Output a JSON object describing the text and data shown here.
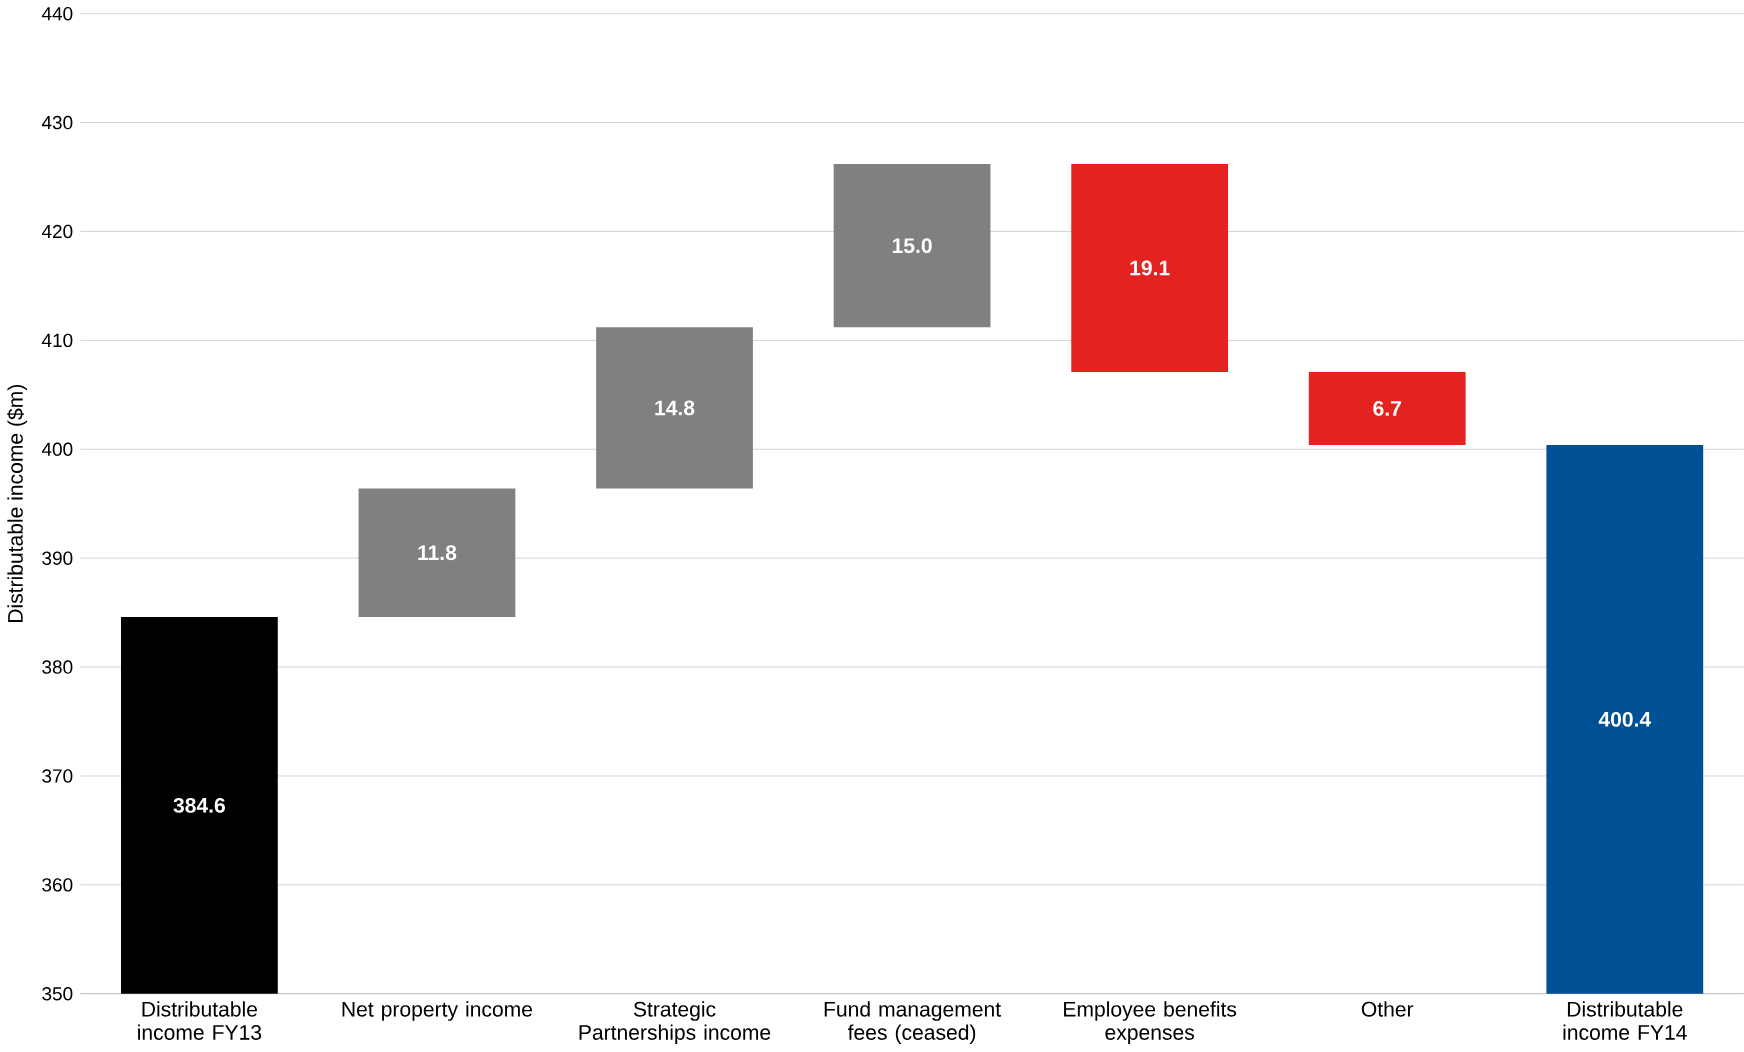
{
  "chart_data": {
    "type": "bar",
    "ylabel": "Distributable income ($m)",
    "categories": [
      "Distributable income FY13",
      "Net property income",
      "Strategic Partnerships income",
      "Fund management fees (ceased)",
      "Employee benefits expenses",
      "Other",
      "Distributable income FY14"
    ],
    "values": [
      384.6,
      11.8,
      14.8,
      15.0,
      -19.1,
      -6.7,
      400.4
    ],
    "base": [
      0,
      384.6,
      396.4,
      411.2,
      426.2,
      407.1,
      0
    ],
    "colors": [
      "#000000",
      "#808080",
      "#808080",
      "#808080",
      "#e42320",
      "#e42320",
      "#005096"
    ],
    "ylim": [
      350,
      440
    ],
    "yticks": [
      350,
      360,
      370,
      380,
      390,
      400,
      410,
      420,
      430,
      440
    ],
    "value_labels": [
      "384.6",
      "11.8",
      "14.8",
      "15.0",
      "19.1",
      "6.7",
      "400.4"
    ],
    "grid": "y"
  }
}
